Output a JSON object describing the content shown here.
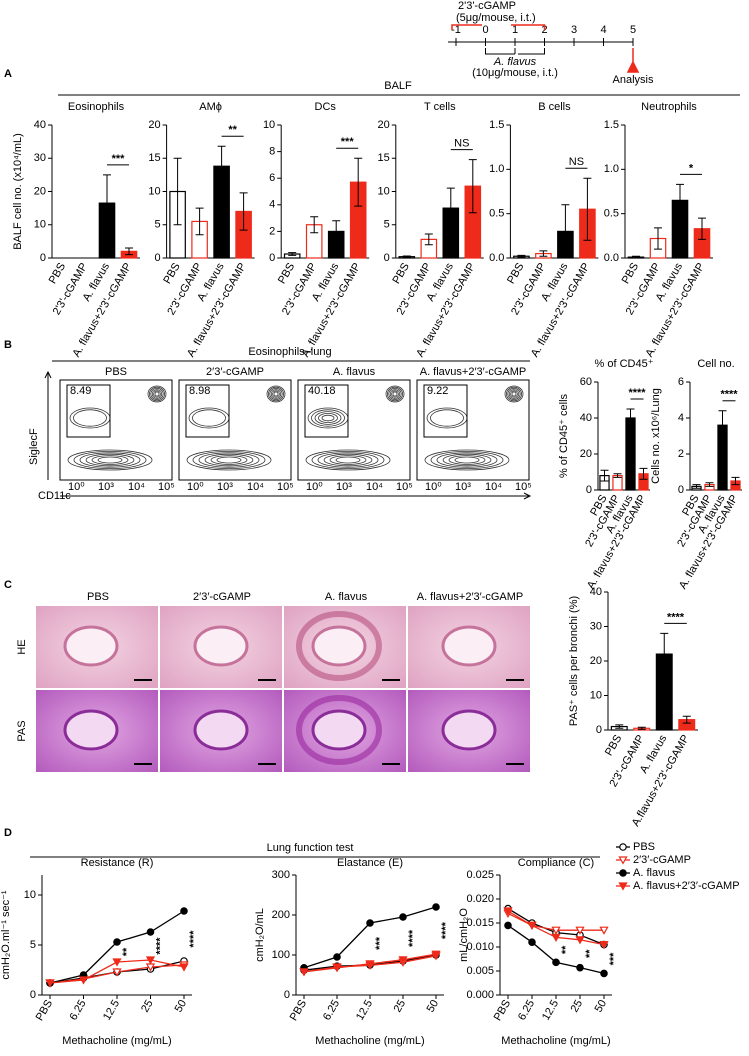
{
  "figure": {
    "panel_labels": [
      "A",
      "B",
      "C",
      "D"
    ],
    "timeline": {
      "treatment": "2'3'-cGAMP",
      "treatment_dose": "(5μg/mouse, i.t.)",
      "days": [
        -1,
        0,
        1,
        2,
        3,
        4,
        5
      ],
      "challenge": "A. flavus",
      "challenge_dose": "(10μg/mouse, i.t.)",
      "endpoint": "Analysis"
    },
    "sections": {
      "balf": "BALF",
      "eos": "Eosinophils–lung",
      "lung": "Lung function test"
    },
    "flow": {
      "groups": [
        "PBS",
        "2′3′-cGAMP",
        "A. flavus",
        "A. flavus+2′3′-cGAMP"
      ],
      "gates": [
        8.49,
        8.98,
        40.18,
        9.22
      ],
      "y_axis": "SiglecF",
      "x_axis": "CD11c",
      "axis_ticks": [
        "10⁰",
        "10³",
        "10⁴",
        "10⁵"
      ]
    },
    "histology": {
      "groups": [
        "PBS",
        "2′3′-cGAMP",
        "A. flavus",
        "A. flavus+2′3′-cGAMP"
      ],
      "stains": [
        "HE",
        "PAS"
      ]
    }
  },
  "chart_data": [
    {
      "type": "bar",
      "title": "Eosinophils",
      "ylabel": "BALF cell no. (x10⁴/mL)",
      "categories": [
        "PBS",
        "2'3'-cGAMP",
        "A. flavus",
        "A. flavus+2'3'-cGAMP"
      ],
      "values": [
        0,
        0,
        16.5,
        2
      ],
      "errors": [
        0,
        0,
        8.5,
        1
      ],
      "colors": [
        "#ffffff",
        "#ffffff",
        "#000000",
        "#ee2a1b"
      ],
      "edgecolors": [
        "#000000",
        "#ee2a1b",
        "#000000",
        "#ee2a1b"
      ],
      "ylim": [
        0,
        40
      ],
      "yticks": [
        0,
        10,
        20,
        30,
        40
      ],
      "annotation": "***"
    },
    {
      "type": "bar",
      "title": "AMϕ",
      "categories": [
        "PBS",
        "2'3'-cGAMP",
        "A. flavus",
        "A. flavus+2'3'-cGAMP"
      ],
      "values": [
        10,
        5.5,
        13.8,
        7
      ],
      "errors": [
        5,
        2,
        3,
        2.8
      ],
      "colors": [
        "#ffffff",
        "#ffffff",
        "#000000",
        "#ee2a1b"
      ],
      "edgecolors": [
        "#000000",
        "#ee2a1b",
        "#000000",
        "#ee2a1b"
      ],
      "ylim": [
        0,
        20
      ],
      "yticks": [
        0,
        5,
        10,
        15,
        20
      ],
      "annotation": "**"
    },
    {
      "type": "bar",
      "title": "DCs",
      "categories": [
        "PBS",
        "2'3'-cGAMP",
        "A. flavus",
        "A. flavus+2'3'-cGAMP"
      ],
      "values": [
        0.3,
        2.5,
        2,
        5.7
      ],
      "errors": [
        0.1,
        0.6,
        0.8,
        1.8
      ],
      "colors": [
        "#ffffff",
        "#ffffff",
        "#000000",
        "#ee2a1b"
      ],
      "edgecolors": [
        "#000000",
        "#ee2a1b",
        "#000000",
        "#ee2a1b"
      ],
      "ylim": [
        0,
        10
      ],
      "yticks": [
        0,
        2,
        4,
        6,
        8,
        10
      ],
      "annotation": "***"
    },
    {
      "type": "bar",
      "title": "T cells",
      "categories": [
        "PBS",
        "2'3'-cGAMP",
        "A. flavus",
        "A. flavus+2'3'-cGAMP"
      ],
      "values": [
        0.2,
        2.8,
        7.5,
        10.8
      ],
      "errors": [
        0.1,
        0.8,
        3,
        4
      ],
      "colors": [
        "#ffffff",
        "#ffffff",
        "#000000",
        "#ee2a1b"
      ],
      "edgecolors": [
        "#000000",
        "#ee2a1b",
        "#000000",
        "#ee2a1b"
      ],
      "ylim": [
        0,
        20
      ],
      "yticks": [
        0,
        5,
        10,
        15,
        20
      ],
      "annotation": "NS"
    },
    {
      "type": "bar",
      "title": "B cells",
      "categories": [
        "PBS",
        "2'3'-cGAMP",
        "A. flavus",
        "A. flavus+2'3'-cGAMP"
      ],
      "values": [
        0.02,
        0.05,
        0.3,
        0.55
      ],
      "errors": [
        0.01,
        0.03,
        0.3,
        0.35
      ],
      "colors": [
        "#ffffff",
        "#ffffff",
        "#000000",
        "#ee2a1b"
      ],
      "edgecolors": [
        "#000000",
        "#ee2a1b",
        "#000000",
        "#ee2a1b"
      ],
      "ylim": [
        0,
        1.5
      ],
      "yticks": [
        {
          "value": 0,
          "label": "0.0"
        },
        0.5,
        {
          "value": 1,
          "label": "1.0"
        },
        1.5
      ],
      "annotation": "NS"
    },
    {
      "type": "bar",
      "title": "Neutrophils",
      "categories": [
        "PBS",
        "2'3'-cGAMP",
        "A. flavus",
        "A. flavus+2'3'-cGAMP"
      ],
      "values": [
        0.01,
        0.22,
        0.65,
        0.33
      ],
      "errors": [
        0.01,
        0.12,
        0.18,
        0.12
      ],
      "colors": [
        "#ffffff",
        "#ffffff",
        "#000000",
        "#ee2a1b"
      ],
      "edgecolors": [
        "#000000",
        "#ee2a1b",
        "#000000",
        "#ee2a1b"
      ],
      "ylim": [
        0,
        1.5
      ],
      "yticks": [
        {
          "value": 0,
          "label": "0.0"
        },
        0.5,
        {
          "value": 1,
          "label": "1.0"
        },
        1.5
      ],
      "annotation": "*"
    },
    {
      "type": "bar",
      "title": "% of CD45⁺",
      "ylabel": "% of CD45⁺ cells",
      "categories": [
        "PBS",
        "2'3'-cGAMP",
        "A. flavus",
        "A. flavus+2'3'-cGAMP"
      ],
      "values": [
        8,
        8,
        40,
        9
      ],
      "errors": [
        3,
        1,
        5,
        3
      ],
      "colors": [
        "#ffffff",
        "#ffffff",
        "#000000",
        "#ee2a1b"
      ],
      "edgecolors": [
        "#000000",
        "#ee2a1b",
        "#000000",
        "#ee2a1b"
      ],
      "ylim": [
        0,
        60
      ],
      "yticks": [
        0,
        20,
        40,
        60
      ],
      "annotation": "****"
    },
    {
      "type": "bar",
      "title": "Cell no.",
      "ylabel": "Cells no. x10⁶/Lung",
      "categories": [
        "PBS",
        "2'3'-cGAMP",
        "A. flavus",
        "A. flavus+2'3'-cGAMP"
      ],
      "values": [
        0.2,
        0.3,
        3.6,
        0.5
      ],
      "errors": [
        0.1,
        0.1,
        0.8,
        0.2
      ],
      "colors": [
        "#ffffff",
        "#ffffff",
        "#000000",
        "#ee2a1b"
      ],
      "edgecolors": [
        "#000000",
        "#ee2a1b",
        "#000000",
        "#ee2a1b"
      ],
      "ylim": [
        0,
        6
      ],
      "yticks": [
        0,
        2,
        4,
        6
      ],
      "annotation": "****"
    },
    {
      "type": "bar",
      "ylabel": "PAS⁺ cells per bronchi (%)",
      "categories": [
        "PBS",
        "2'3'-cGAMP",
        "A. flavus",
        "A.flavus+2'3'-cGAMP"
      ],
      "values": [
        1,
        0.5,
        22,
        3
      ],
      "errors": [
        0.5,
        0.3,
        6,
        1
      ],
      "colors": [
        "#ffffff",
        "#ffffff",
        "#000000",
        "#ee2a1b"
      ],
      "edgecolors": [
        "#000000",
        "#ee2a1b",
        "#000000",
        "#ee2a1b"
      ],
      "ylim": [
        0,
        40
      ],
      "yticks": [
        0,
        10,
        20,
        30,
        40
      ],
      "annotation": "****"
    },
    {
      "type": "line",
      "title": "Resistance (R)",
      "ylabel": "cmH₂O.ml⁻¹ sec⁻¹",
      "xlabel": "Methacholine (mg/mL)",
      "categories": [
        "PBS",
        "6.25",
        "12.5",
        "25",
        "50"
      ],
      "ylim": [
        0,
        12
      ],
      "yticks": [
        0,
        5,
        10
      ],
      "series": [
        {
          "name": "PBS",
          "color": "#000000",
          "marker": "circle",
          "filled": false,
          "values": [
            1.2,
            1.7,
            2.3,
            2.6,
            3.4
          ]
        },
        {
          "name": "2′3′-cGAMP",
          "color": "#ee2a1b",
          "marker": "triangle",
          "filled": false,
          "values": [
            1.2,
            1.6,
            2.3,
            2.8,
            3
          ]
        },
        {
          "name": "A. flavus",
          "color": "#000000",
          "marker": "circle",
          "filled": true,
          "values": [
            1.2,
            2,
            5.3,
            6.3,
            8.4
          ]
        },
        {
          "name": "A. flavus+2′3′-cGAMP",
          "color": "#ee2a1b",
          "marker": "triangle",
          "filled": true,
          "values": [
            1.2,
            1.5,
            3.3,
            3.5,
            2.8
          ]
        }
      ],
      "annotations": [
        "**",
        "****",
        "****"
      ]
    },
    {
      "type": "line",
      "title": "Elastance (E)",
      "ylabel": "cmH₂O/mL",
      "xlabel": "Methacholine (mg/mL)",
      "categories": [
        "PBS",
        "6.25",
        "12.5",
        "25",
        "50"
      ],
      "ylim": [
        0,
        300
      ],
      "yticks": [
        0,
        100,
        200,
        300
      ],
      "series": [
        {
          "name": "PBS",
          "color": "#000000",
          "marker": "circle",
          "filled": false,
          "values": [
            62,
            72,
            75,
            85,
            100
          ]
        },
        {
          "name": "2′3′-cGAMP",
          "color": "#ee2a1b",
          "marker": "triangle",
          "filled": false,
          "values": [
            58,
            70,
            74,
            82,
            98
          ]
        },
        {
          "name": "A. flavus",
          "color": "#000000",
          "marker": "circle",
          "filled": true,
          "values": [
            68,
            95,
            180,
            195,
            220
          ]
        },
        {
          "name": "A. flavus+2′3′-cGAMP",
          "color": "#ee2a1b",
          "marker": "triangle",
          "filled": true,
          "values": [
            58,
            68,
            78,
            88,
            102
          ]
        }
      ],
      "annotations": [
        "***",
        "****",
        "****"
      ]
    },
    {
      "type": "line",
      "title": "Compliance (C)",
      "ylabel": "mL/cmH₂O",
      "xlabel": "Methacholine (mg/mL)",
      "categories": [
        "PBS",
        "6.25",
        "12.5",
        "25",
        "50"
      ],
      "ylim": [
        0,
        0.025
      ],
      "yticks": [
        {
          "value": 0,
          "label": "0.000"
        },
        0.005,
        {
          "value": 0.01,
          "label": "0.010"
        },
        0.015,
        {
          "value": 0.02,
          "label": "0.020"
        },
        0.025
      ],
      "legend": "upper right",
      "series": [
        {
          "name": "PBS",
          "color": "#000000",
          "marker": "circle",
          "filled": false,
          "values": [
            0.018,
            0.015,
            0.013,
            0.0125,
            0.0105
          ]
        },
        {
          "name": "2′3′-cGAMP",
          "color": "#ee2a1b",
          "marker": "triangle",
          "filled": false,
          "values": [
            0.017,
            0.0145,
            0.0135,
            0.0135,
            0.0135
          ]
        },
        {
          "name": "A. flavus",
          "color": "#000000",
          "marker": "circle",
          "filled": true,
          "values": [
            0.0145,
            0.011,
            0.0068,
            0.0057,
            0.0045
          ]
        },
        {
          "name": "A. flavus+2′3′-cGAMP",
          "color": "#ee2a1b",
          "marker": "triangle",
          "filled": true,
          "values": [
            0.0175,
            0.0145,
            0.012,
            0.0115,
            0.0105
          ]
        }
      ],
      "annotations": [
        "**",
        "**",
        "***"
      ]
    }
  ]
}
